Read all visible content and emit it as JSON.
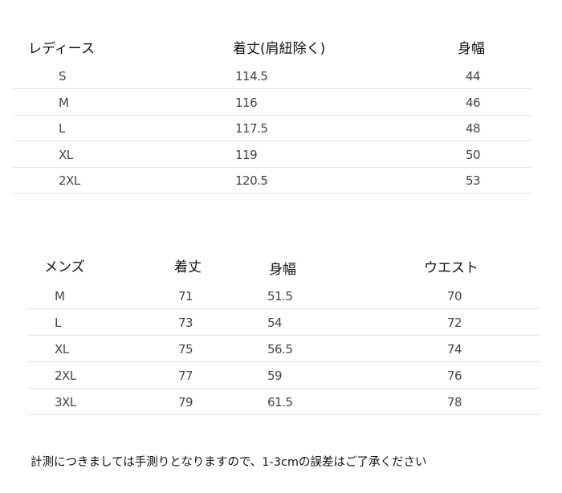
{
  "ladies": {
    "headers": [
      "レディース",
      "着丈(肩紐除く)",
      "身幅"
    ],
    "rows": [
      [
        "S",
        "114.5",
        "44"
      ],
      [
        "M",
        "116",
        "46"
      ],
      [
        "L",
        "117.5",
        "48"
      ],
      [
        "XL",
        "119",
        "50"
      ],
      [
        "2XL",
        "120.5",
        "53"
      ]
    ]
  },
  "mens": {
    "headers": [
      "メンズ",
      "着丈",
      "身幅",
      "ウエスト"
    ],
    "rows": [
      [
        "M",
        "71",
        "51.5",
        "70"
      ],
      [
        "L",
        "73",
        "54",
        "72"
      ],
      [
        "XL",
        "75",
        "56.5",
        "74"
      ],
      [
        "2XL",
        "77",
        "59",
        "76"
      ],
      [
        "3XL",
        "79",
        "61.5",
        "78"
      ]
    ]
  },
  "note": "計測につきましては手測りとなりますので、1-3cmの誤差はご了承ください"
}
